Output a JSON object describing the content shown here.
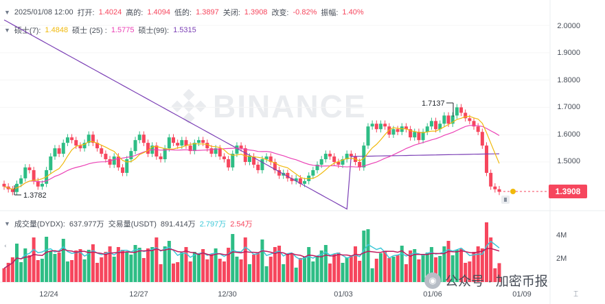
{
  "info": {
    "date": "2025/01/08 12:00",
    "open_label": "打开:",
    "open": "1.4024",
    "high_label": "高的:",
    "high": "1.4094",
    "low_label": "低的:",
    "low": "1.3897",
    "close_label": "关闭:",
    "close": "1.3908",
    "change_label": "改变:",
    "change": "-0.82%",
    "amp_label": "振幅:",
    "amp": "1.40%"
  },
  "ma": {
    "ma7_label": "硕士(7):",
    "ma7": "1.4848",
    "ma25_label": "硕士 (25) :",
    "ma25": "1.5775",
    "ma99_label": "硕士(99):",
    "ma99": "1.5315"
  },
  "volume": {
    "base_label": "成交量(DYDX):",
    "base": "637.977万",
    "quote_label": "交易量(USDT)",
    "quote": "891.414万",
    "ma1": "2.797万",
    "ma2": "2.54万"
  },
  "current_price": "1.3908",
  "annotations": {
    "high": "1.7137",
    "low": "1.3782"
  },
  "watermark": {
    "text": "BINANCE",
    "wechat": "公众号 · 加密币报"
  },
  "colors": {
    "up": "#2ebd85",
    "down": "#f6465d",
    "ma7": "#f0b90b",
    "ma25": "#eb40b5",
    "ma99": "#7b3fb5"
  },
  "chart_data": {
    "type": "candlestick",
    "price_axis": [
      "2.0000",
      "1.9000",
      "1.8000",
      "1.7000",
      "1.6000",
      "1.5000"
    ],
    "volume_axis": [
      "4M",
      "2M"
    ],
    "x_labels": [
      "12/24",
      "12/27",
      "12/30",
      "01/03",
      "01/06",
      "01/09"
    ]
  }
}
